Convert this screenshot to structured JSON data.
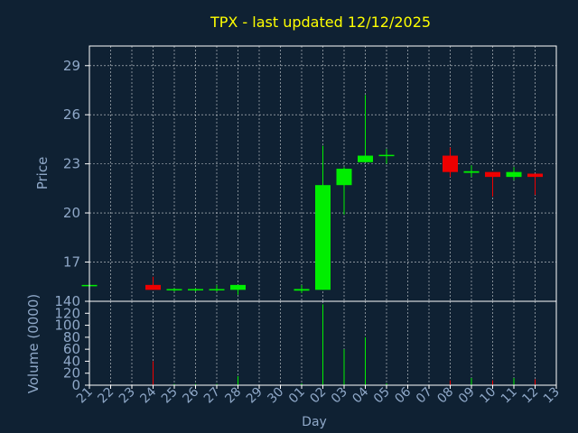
{
  "colors": {
    "background": "#0f2133",
    "title": "#ffff00",
    "axis_text": "#8fa8c8",
    "grid": "#ffffff",
    "frame": "#ffffff",
    "up": "#00ee00",
    "down": "#ee0000"
  },
  "chart_data": {
    "type": "candlestick",
    "title": "TPX - last updated 12/12/2025",
    "price_panel": {
      "ylabel": "Price",
      "ylim": [
        14.6,
        30.2
      ],
      "yticks": [
        17,
        20,
        23,
        26,
        29
      ],
      "grid": true
    },
    "volume_panel": {
      "ylabel": "Volume (0000)",
      "ylim": [
        0,
        140
      ],
      "yticks": [
        0,
        20,
        40,
        60,
        80,
        100,
        120,
        140
      ]
    },
    "xlabel": "Day",
    "x_ticks": [
      "21",
      "22",
      "23",
      "24",
      "25",
      "26",
      "27",
      "28",
      "29",
      "30",
      "01",
      "02",
      "03",
      "04",
      "05",
      "06",
      "07",
      "08",
      "09",
      "10",
      "11",
      "12",
      "13"
    ],
    "candles": [
      {
        "day": "21",
        "open": 15.6,
        "high": 15.6,
        "low": 15.6,
        "close": 15.6,
        "volume": 0
      },
      {
        "day": "24",
        "open": 15.6,
        "high": 16.1,
        "low": 15.3,
        "close": 15.3,
        "volume": 40
      },
      {
        "day": "25",
        "open": 15.3,
        "high": 15.4,
        "low": 15.2,
        "close": 15.35,
        "volume": 2
      },
      {
        "day": "26",
        "open": 15.3,
        "high": 15.4,
        "low": 15.2,
        "close": 15.35,
        "volume": 2
      },
      {
        "day": "27",
        "open": 15.3,
        "high": 15.6,
        "low": 15.2,
        "close": 15.35,
        "volume": 2
      },
      {
        "day": "28",
        "open": 15.3,
        "high": 15.6,
        "low": 15.0,
        "close": 15.6,
        "volume": 15
      },
      {
        "day": "01",
        "open": 15.25,
        "high": 15.6,
        "low": 15.1,
        "close": 15.35,
        "volume": 3
      },
      {
        "day": "02",
        "open": 15.3,
        "high": 24.1,
        "low": 15.3,
        "close": 21.7,
        "volume": 135
      },
      {
        "day": "03",
        "open": 21.7,
        "high": 22.8,
        "low": 19.9,
        "close": 22.7,
        "volume": 60
      },
      {
        "day": "04",
        "open": 23.1,
        "high": 27.2,
        "low": 23.1,
        "close": 23.5,
        "volume": 80
      },
      {
        "day": "05",
        "open": 23.5,
        "high": 23.9,
        "low": 23.0,
        "close": 23.55,
        "volume": 3
      },
      {
        "day": "08",
        "open": 23.5,
        "high": 24.0,
        "low": 22.2,
        "close": 22.5,
        "volume": 8
      },
      {
        "day": "09",
        "open": 22.45,
        "high": 22.9,
        "low": 22.2,
        "close": 22.55,
        "volume": 12
      },
      {
        "day": "10",
        "open": 22.5,
        "high": 22.5,
        "low": 21.0,
        "close": 22.2,
        "volume": 8
      },
      {
        "day": "11",
        "open": 22.2,
        "high": 22.8,
        "low": 22.0,
        "close": 22.5,
        "volume": 12
      },
      {
        "day": "12",
        "open": 22.4,
        "high": 22.4,
        "low": 21.1,
        "close": 22.2,
        "volume": 10
      }
    ]
  }
}
